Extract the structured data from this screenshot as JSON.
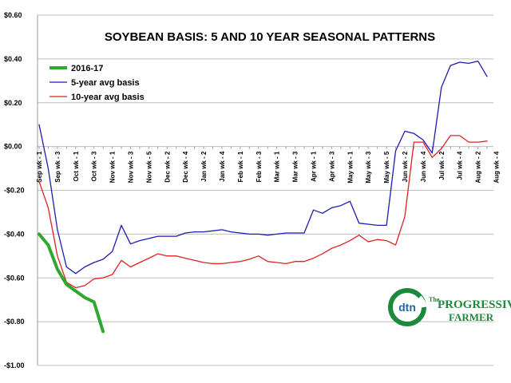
{
  "chart_data": {
    "type": "line",
    "title": "SOYBEAN BASIS: 5 AND 10 YEAR SEASONAL PATTERNS",
    "xlabel": "",
    "ylabel": "",
    "ylim": [
      -1.0,
      0.6
    ],
    "yticks": [
      0.6,
      0.4,
      0.2,
      0.0,
      -0.2,
      -0.4,
      -0.6,
      -0.8,
      -1.0
    ],
    "ytick_labels": [
      "$0.60",
      "$0.40",
      "$0.20",
      "$0.00",
      "-$0.20",
      "-$0.40",
      "-$0.60",
      "-$0.80",
      "-$1.00"
    ],
    "grid": true,
    "legend_position": "upper-left",
    "x_tick_labels": [
      "Sep wk - 1",
      "Sep wk - 3",
      "Oct wk - 1",
      "Oct wk - 3",
      "Nov wk - 1",
      "Nov wk - 3",
      "Nov wk - 5",
      "Dec wk - 2",
      "Dec wk - 4",
      "Jan wk - 2",
      "Jan wk - 4",
      "Feb wk - 1",
      "Feb wk - 3",
      "Mar wk - 1",
      "Mar wk - 3",
      "Apr wk - 1",
      "Apr wk - 3",
      "May wk - 1",
      "May wk - 3",
      "May wk - 5",
      "Jun wk - 2",
      "Jun wk - 4",
      "Jul wk - 2",
      "Jul wk - 4",
      "Aug wk - 2",
      "Aug wk - 4"
    ],
    "colors": {
      "2016-17": "#2ea82e",
      "5-year avg basis": "#1c1cb0",
      "10-year avg basis": "#e02020"
    },
    "series": [
      {
        "name": "2016-17",
        "values": [
          -0.4,
          -0.45,
          -0.56,
          -0.63,
          -0.66,
          -0.69,
          -0.71,
          -0.845
        ]
      },
      {
        "name": "5-year avg basis",
        "values": [
          0.1,
          -0.1,
          -0.38,
          -0.55,
          -0.58,
          -0.55,
          -0.53,
          -0.515,
          -0.48,
          -0.36,
          -0.445,
          -0.43,
          -0.42,
          -0.41,
          -0.41,
          -0.41,
          -0.395,
          -0.39,
          -0.39,
          -0.385,
          -0.38,
          -0.39,
          -0.395,
          -0.4,
          -0.4,
          -0.405,
          -0.4,
          -0.395,
          -0.395,
          -0.395,
          -0.29,
          -0.305,
          -0.28,
          -0.27,
          -0.25,
          -0.35,
          -0.355,
          -0.36,
          -0.36,
          -0.02,
          0.07,
          0.06,
          0.03,
          -0.03,
          0.27,
          0.37,
          0.385,
          0.38,
          0.39,
          0.32
        ]
      },
      {
        "name": "10-year avg basis",
        "values": [
          -0.16,
          -0.28,
          -0.5,
          -0.62,
          -0.645,
          -0.635,
          -0.605,
          -0.6,
          -0.585,
          -0.52,
          -0.55,
          -0.53,
          -0.51,
          -0.49,
          -0.5,
          -0.5,
          -0.51,
          -0.52,
          -0.53,
          -0.535,
          -0.535,
          -0.53,
          -0.525,
          -0.515,
          -0.5,
          -0.525,
          -0.53,
          -0.535,
          -0.525,
          -0.525,
          -0.51,
          -0.49,
          -0.465,
          -0.45,
          -0.43,
          -0.405,
          -0.435,
          -0.425,
          -0.43,
          -0.45,
          -0.32,
          0.02,
          0.02,
          -0.05,
          -0.01,
          0.05,
          0.05,
          0.02,
          0.02,
          0.025
        ]
      }
    ]
  },
  "logo": {
    "dtn": "dtn",
    "brand_line1": "The",
    "brand_line2": "PROGRESSIVE",
    "brand_line3": "FARMER"
  }
}
